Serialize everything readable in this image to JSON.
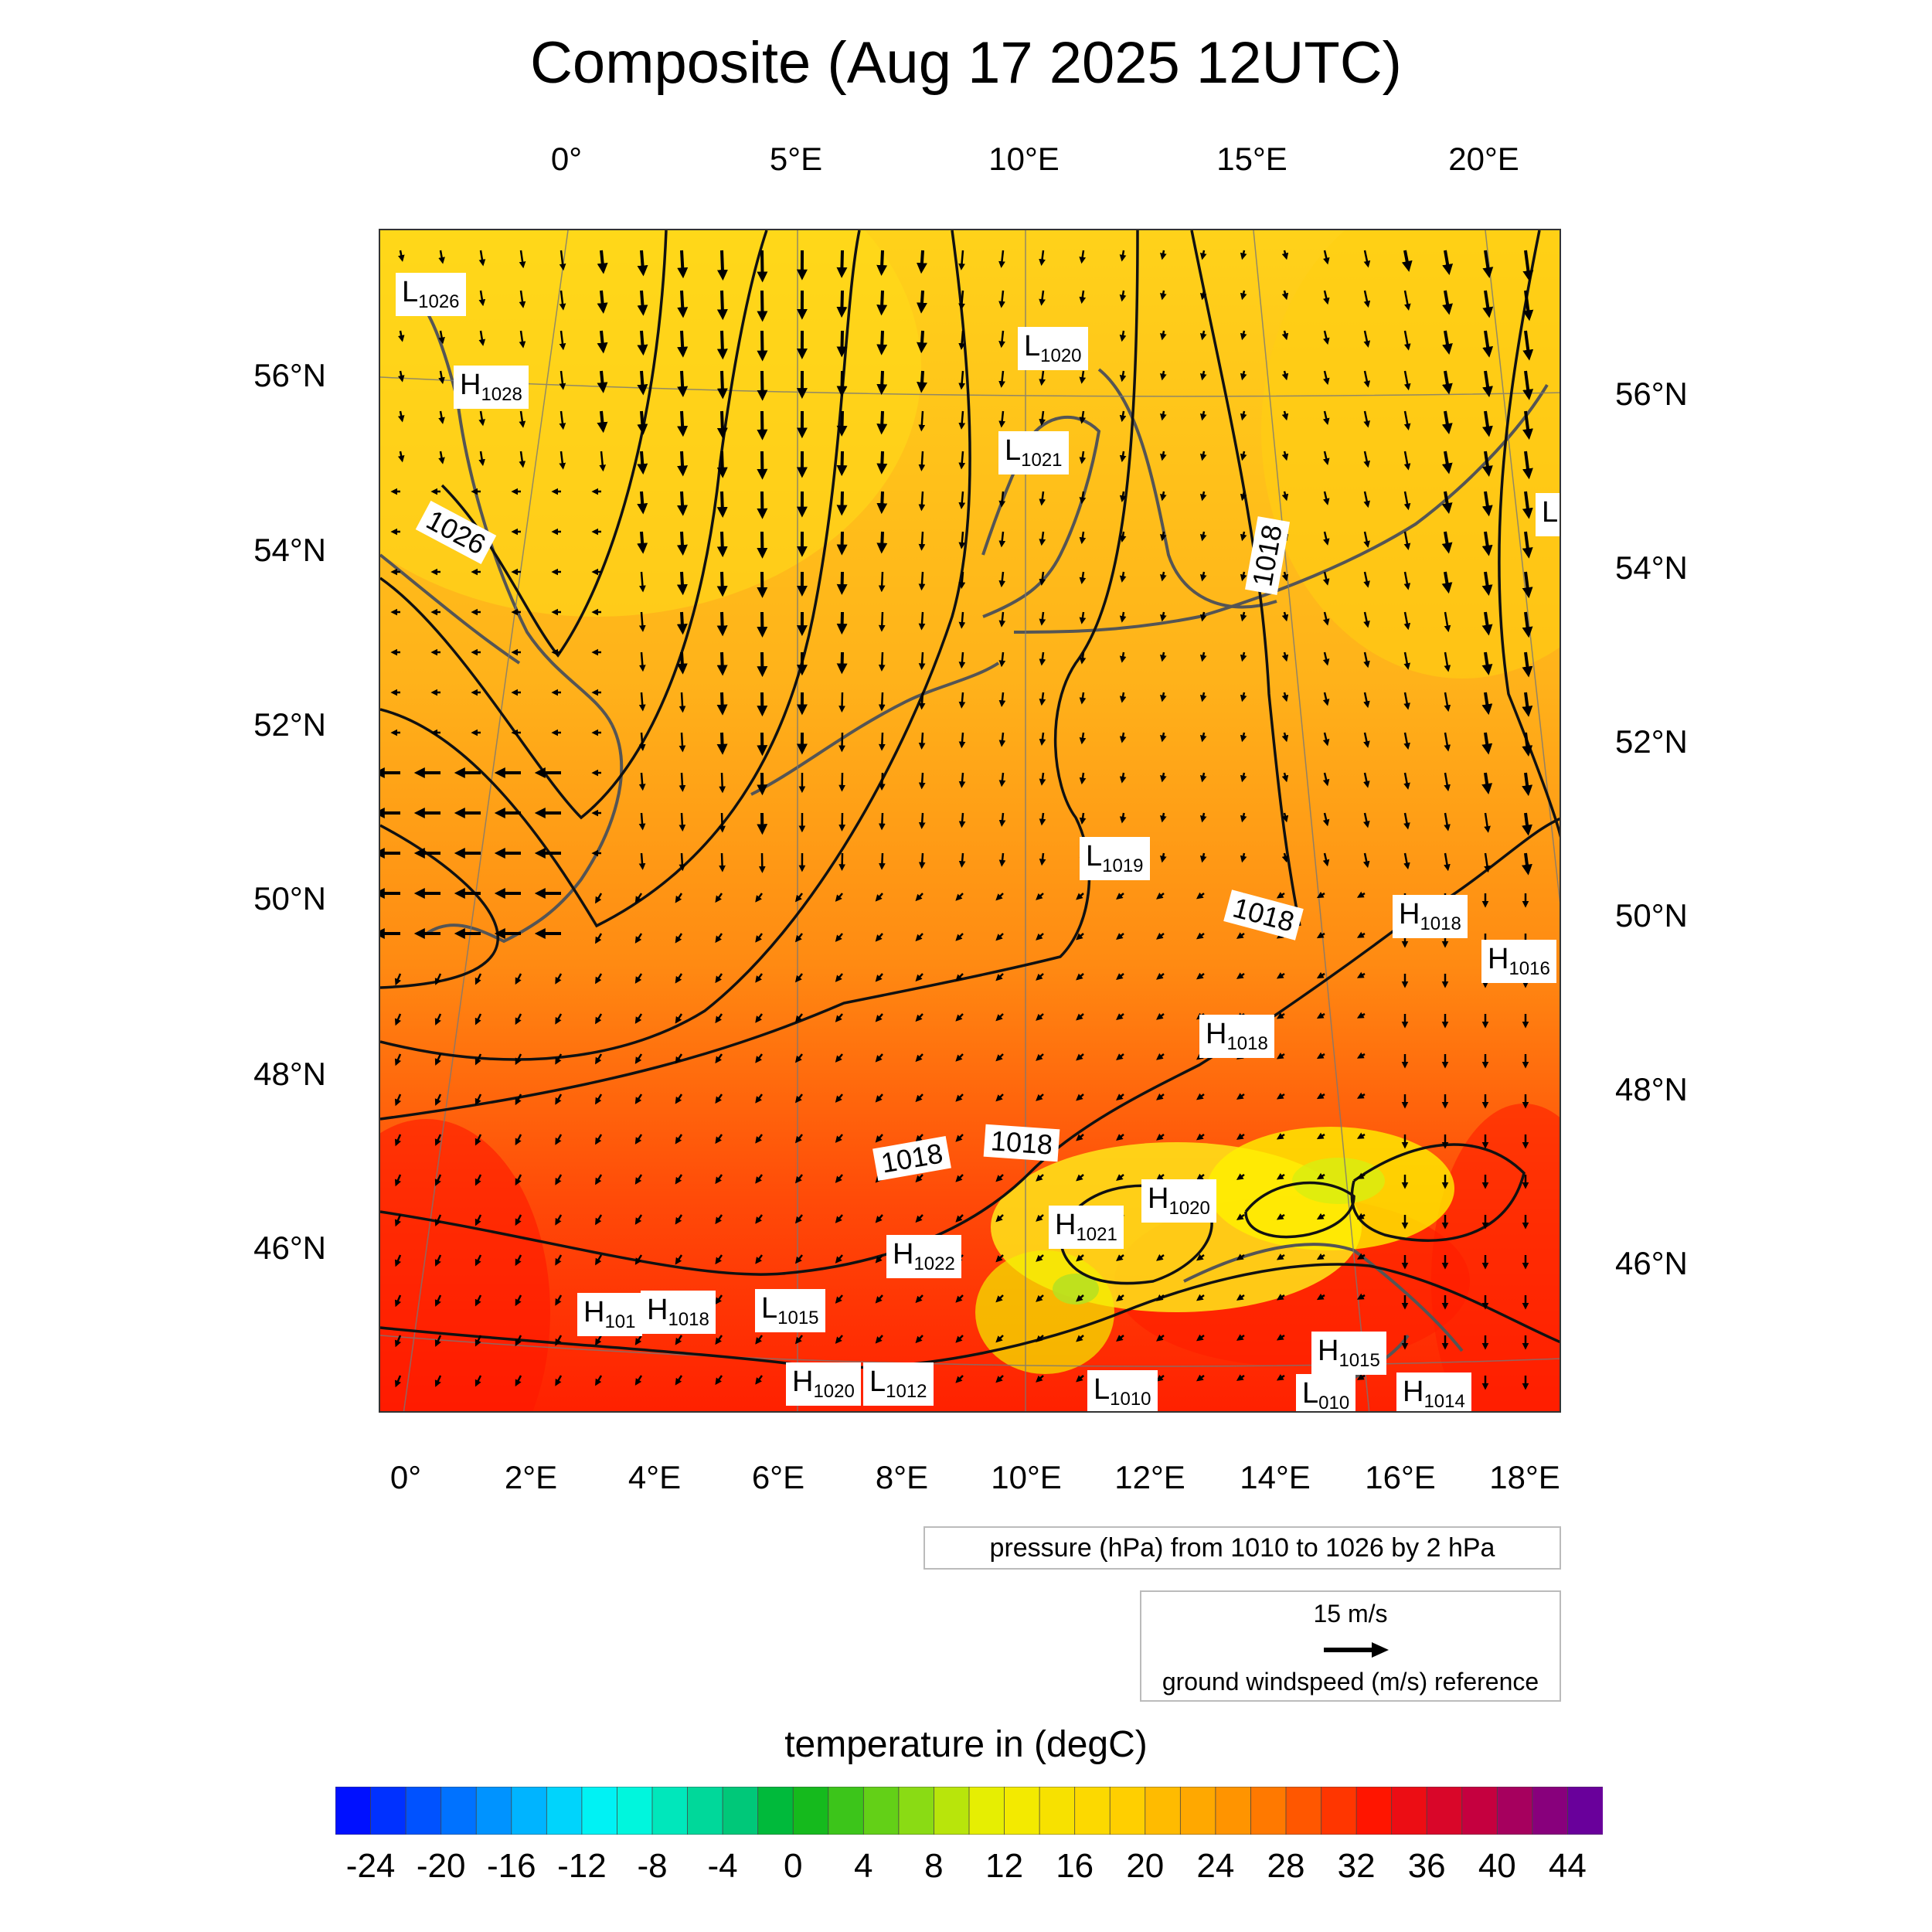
{
  "title": "Composite (Aug 17 2025 12UTC)",
  "top_longitude_labels": [
    "0°",
    "5°E",
    "10°E",
    "15°E",
    "20°E"
  ],
  "bottom_longitude_labels": [
    "0°",
    "2°E",
    "4°E",
    "6°E",
    "8°E",
    "10°E",
    "12°E",
    "14°E",
    "16°E",
    "18°E"
  ],
  "left_latitude_labels": [
    "56°N",
    "54°N",
    "52°N",
    "50°N",
    "48°N",
    "46°N"
  ],
  "right_latitude_labels": [
    "56°N",
    "54°N",
    "52°N",
    "50°N",
    "48°N",
    "46°N"
  ],
  "pressure_centers": [
    {
      "type": "L",
      "value": "1026"
    },
    {
      "type": "H",
      "value": "1028"
    },
    {
      "type": "L",
      "value": "1020"
    },
    {
      "type": "L",
      "value": "1021"
    },
    {
      "type": "L",
      "value": "1019"
    },
    {
      "type": "H",
      "value": "1018"
    },
    {
      "type": "H",
      "value": "1016"
    },
    {
      "type": "H",
      "value": "1018"
    },
    {
      "type": "H",
      "value": "1020"
    },
    {
      "type": "H",
      "value": "1021"
    },
    {
      "type": "H",
      "value": "1022"
    },
    {
      "type": "H",
      "value": "101"
    },
    {
      "type": "H",
      "value": "1018"
    },
    {
      "type": "L",
      "value": "1015"
    },
    {
      "type": "H",
      "value": "1020"
    },
    {
      "type": "L",
      "value": "1012"
    },
    {
      "type": "L",
      "value": "1010"
    },
    {
      "type": "H",
      "value": "1015"
    },
    {
      "type": "L",
      "value": "010"
    },
    {
      "type": "H",
      "value": "1014"
    },
    {
      "type": "L",
      "value": ""
    }
  ],
  "isobar_labels": [
    "1026",
    "1018",
    "1018",
    "1018",
    "1018"
  ],
  "pressure_legend": "pressure (hPa) from 1010 to 1026 by 2 hPa",
  "wind_legend": {
    "value": "15 m/s",
    "description": "ground windspeed (m/s) reference"
  },
  "colorbar": {
    "title": "temperature in (degC)",
    "min": -26,
    "max": 46,
    "step": 2,
    "tick_labels": [
      "-24",
      "-20",
      "-16",
      "-12",
      "-8",
      "-4",
      "0",
      "4",
      "8",
      "12",
      "16",
      "20",
      "24",
      "28",
      "32",
      "36",
      "40",
      "44"
    ]
  },
  "colors": {
    "north_field": "#ffd21a",
    "mid_field": "#ffa01a",
    "south_field": "#ff2a00",
    "alps_field": "#fff000",
    "isobar": "#111111",
    "coastline": "#555555"
  }
}
